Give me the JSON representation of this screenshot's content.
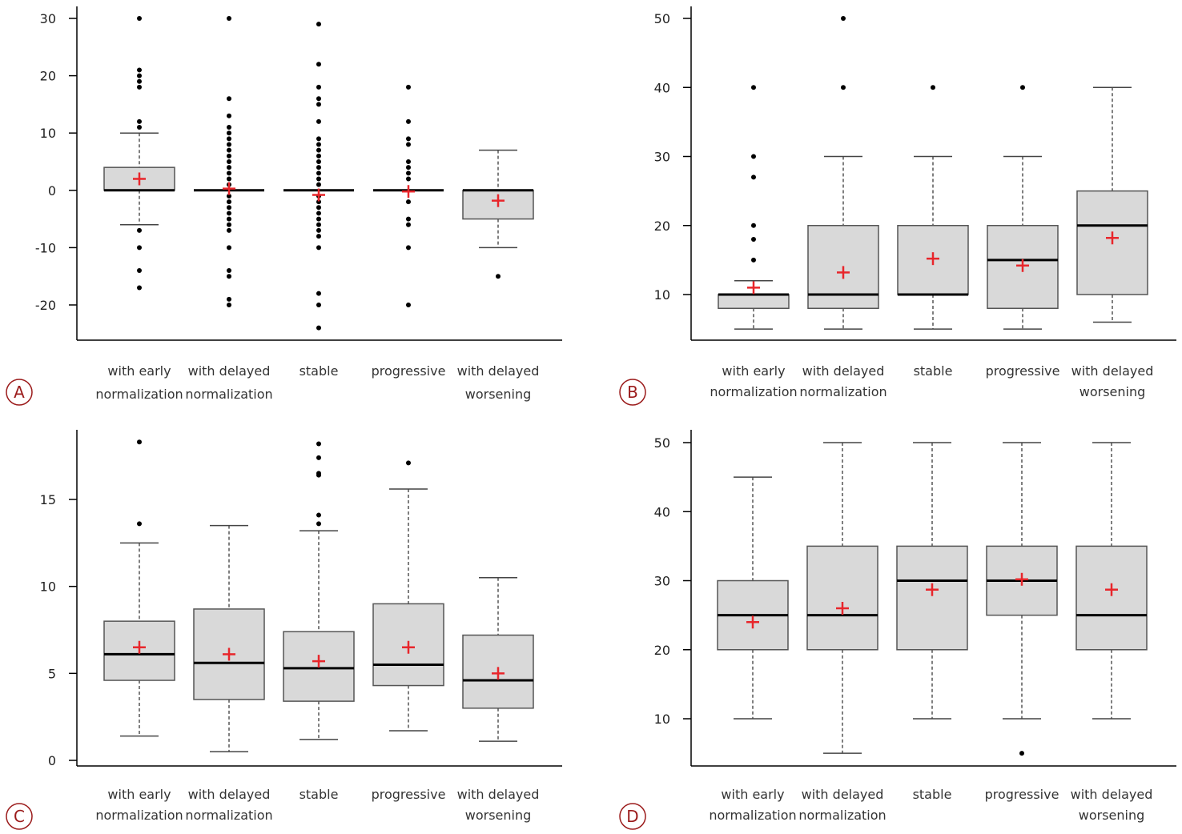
{
  "colors": {
    "box_fill": "#d9d9d9",
    "box_stroke": "#555555",
    "median": "#000000",
    "mean": "#e8262b",
    "outlier": "#000000",
    "axis": "#000000",
    "panel_circle": "#9b1b1b"
  },
  "categories": [
    [
      "with early",
      "normalization"
    ],
    [
      "with delayed",
      "normalization"
    ],
    [
      "stable",
      ""
    ],
    [
      "progressive",
      ""
    ],
    [
      "with delayed",
      "worsening"
    ]
  ],
  "chart_data": [
    {
      "type": "box",
      "panel_label": "A",
      "ylim": [
        -26,
        32
      ],
      "yticks": [
        -20,
        -10,
        0,
        10,
        20,
        30
      ],
      "boxes": [
        {
          "q1": 0,
          "median": 0,
          "q3": 4,
          "whisker_low": -6,
          "whisker_high": 10,
          "mean": 2,
          "outliers": [
            30,
            21,
            20,
            19,
            18,
            12,
            11,
            -7,
            -10,
            -14,
            -17
          ]
        },
        {
          "q1": 0,
          "median": 0,
          "q3": 0,
          "whisker_low": 0,
          "whisker_high": 0,
          "mean": 0.3,
          "outliers": [
            30,
            16,
            13,
            11,
            10,
            9,
            8,
            7,
            6,
            5,
            4,
            3,
            2,
            1,
            -1,
            -2,
            -3,
            -4,
            -5,
            -6,
            -7,
            -10,
            -14,
            -15,
            -19,
            -20
          ]
        },
        {
          "q1": 0,
          "median": 0,
          "q3": 0,
          "whisker_low": 0,
          "whisker_high": 0,
          "mean": -0.8,
          "outliers": [
            29,
            22,
            18,
            16,
            15,
            12,
            9,
            8,
            7,
            6,
            5,
            4,
            3,
            2,
            1,
            -1,
            -2,
            -3,
            -4,
            -5,
            -6,
            -7,
            -8,
            -10,
            -18,
            -20,
            -24
          ]
        },
        {
          "q1": 0,
          "median": 0,
          "q3": 0,
          "whisker_low": 0,
          "whisker_high": 0,
          "mean": -0.2,
          "outliers": [
            18,
            12,
            9,
            8,
            5,
            4,
            3,
            2,
            -2,
            -5,
            -6,
            -10,
            -20
          ]
        },
        {
          "q1": -5,
          "median": 0,
          "q3": 0,
          "whisker_low": -10,
          "whisker_high": 7,
          "mean": -1.8,
          "outliers": [
            -15
          ]
        }
      ]
    },
    {
      "type": "box",
      "panel_label": "B",
      "ylim": [
        3,
        52
      ],
      "yticks": [
        10,
        20,
        30,
        40,
        50
      ],
      "boxes": [
        {
          "q1": 8,
          "median": 10,
          "q3": 10,
          "whisker_low": 5,
          "whisker_high": 12,
          "mean": 11,
          "outliers": [
            40,
            30,
            27,
            20,
            18,
            15
          ]
        },
        {
          "q1": 8,
          "median": 10,
          "q3": 20,
          "whisker_low": 5,
          "whisker_high": 30,
          "mean": 13.2,
          "outliers": [
            50,
            40
          ]
        },
        {
          "q1": 10,
          "median": 10,
          "q3": 20,
          "whisker_low": 5,
          "whisker_high": 30,
          "mean": 15.2,
          "outliers": [
            40
          ]
        },
        {
          "q1": 8,
          "median": 15,
          "q3": 20,
          "whisker_low": 5,
          "whisker_high": 30,
          "mean": 14.2,
          "outliers": [
            40
          ]
        },
        {
          "q1": 10,
          "median": 20,
          "q3": 25,
          "whisker_low": 6,
          "whisker_high": 40,
          "mean": 18.2,
          "outliers": []
        }
      ]
    },
    {
      "type": "box",
      "panel_label": "C",
      "ylim": [
        0,
        19
      ],
      "yticks": [
        0,
        5,
        10,
        15
      ],
      "boxes": [
        {
          "q1": 4.6,
          "median": 6.1,
          "q3": 8,
          "whisker_low": 1.4,
          "whisker_high": 12.5,
          "mean": 6.5,
          "outliers": [
            18.3,
            13.6
          ]
        },
        {
          "q1": 3.5,
          "median": 5.6,
          "q3": 8.7,
          "whisker_low": 0.5,
          "whisker_high": 13.5,
          "mean": 6.1,
          "outliers": []
        },
        {
          "q1": 3.4,
          "median": 5.3,
          "q3": 7.4,
          "whisker_low": 1.2,
          "whisker_high": 13.2,
          "mean": 5.7,
          "outliers": [
            18.2,
            17.4,
            16.5,
            16.4,
            14.1,
            13.6
          ]
        },
        {
          "q1": 4.3,
          "median": 5.5,
          "q3": 9,
          "whisker_low": 1.7,
          "whisker_high": 15.6,
          "mean": 6.5,
          "outliers": [
            17.1
          ]
        },
        {
          "q1": 3,
          "median": 4.6,
          "q3": 7.2,
          "whisker_low": 1.1,
          "whisker_high": 10.5,
          "mean": 5,
          "outliers": []
        }
      ]
    },
    {
      "type": "box",
      "panel_label": "D",
      "ylim": [
        3.5,
        52
      ],
      "yticks": [
        10,
        20,
        30,
        40,
        50
      ],
      "boxes": [
        {
          "q1": 20,
          "median": 25,
          "q3": 30,
          "whisker_low": 10,
          "whisker_high": 45,
          "mean": 24,
          "outliers": []
        },
        {
          "q1": 20,
          "median": 25,
          "q3": 35,
          "whisker_low": 5,
          "whisker_high": 50,
          "mean": 26,
          "outliers": []
        },
        {
          "q1": 20,
          "median": 30,
          "q3": 35,
          "whisker_low": 10,
          "whisker_high": 50,
          "mean": 28.7,
          "outliers": []
        },
        {
          "q1": 25,
          "median": 30,
          "q3": 35,
          "whisker_low": 10,
          "whisker_high": 50,
          "mean": 30.2,
          "outliers": [
            5
          ]
        },
        {
          "q1": 20,
          "median": 25,
          "q3": 35,
          "whisker_low": 10,
          "whisker_high": 50,
          "mean": 28.7,
          "outliers": []
        }
      ]
    }
  ]
}
